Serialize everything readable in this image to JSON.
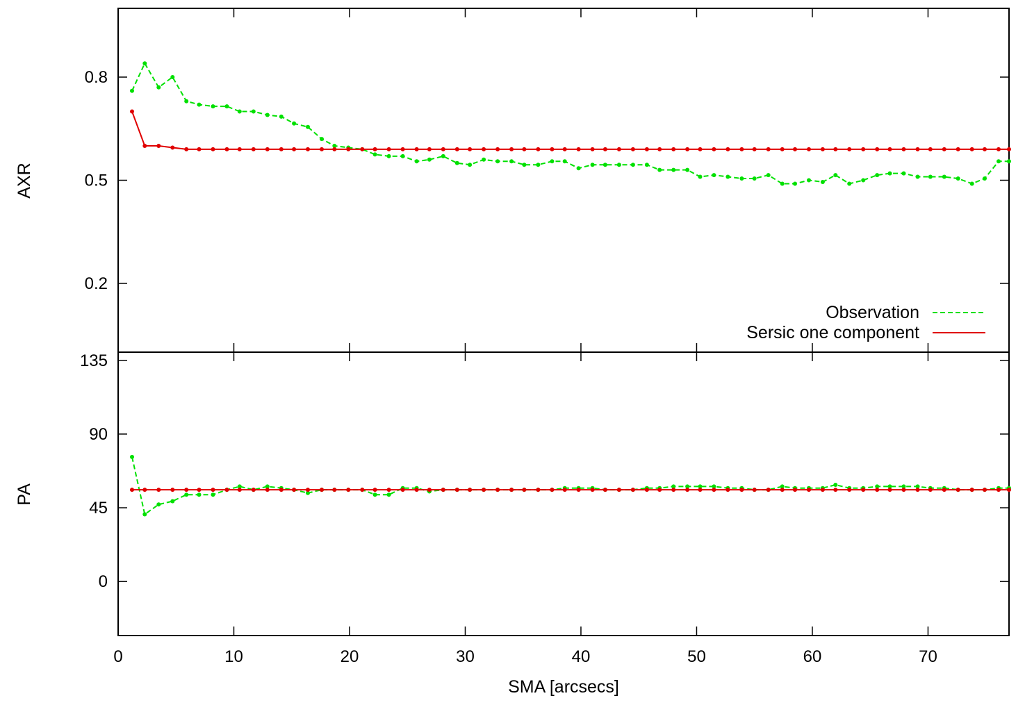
{
  "chart_data": [
    {
      "type": "line",
      "ylabel": "AXR",
      "xlim": [
        0,
        77
      ],
      "ylim": [
        0.0,
        1.0
      ],
      "yticks": [
        0.2,
        0.5,
        0.8
      ],
      "tick_labels": [
        "0.2",
        "0.5",
        "0.8"
      ],
      "legend": {
        "placement": "bottom-right",
        "entries": [
          "Observation",
          "Sersic one component"
        ]
      },
      "series": [
        {
          "name": "Observation",
          "color": "#00e000",
          "style": "dashed",
          "x": [
            1.2,
            2.3,
            3.5,
            4.7,
            5.9,
            7.0,
            8.2,
            9.4,
            10.5,
            11.7,
            12.9,
            14.1,
            15.2,
            16.4,
            17.6,
            18.7,
            19.9,
            21.1,
            22.2,
            23.4,
            24.6,
            25.8,
            26.9,
            28.1,
            29.3,
            30.4,
            31.6,
            32.8,
            34.0,
            35.1,
            36.3,
            37.5,
            38.6,
            39.8,
            41.0,
            42.1,
            43.3,
            44.5,
            45.7,
            46.8,
            48.0,
            49.2,
            50.3,
            51.5,
            52.7,
            53.9,
            55.0,
            56.2,
            57.4,
            58.5,
            59.7,
            60.9,
            62.0,
            63.2,
            64.4,
            65.6,
            66.7,
            67.9,
            69.1,
            70.2,
            71.4,
            72.6,
            73.8,
            74.9,
            76.1,
            77.0
          ],
          "values": [
            0.76,
            0.84,
            0.77,
            0.8,
            0.73,
            0.72,
            0.715,
            0.715,
            0.7,
            0.7,
            0.69,
            0.685,
            0.665,
            0.655,
            0.62,
            0.6,
            0.595,
            0.59,
            0.575,
            0.57,
            0.57,
            0.555,
            0.56,
            0.57,
            0.55,
            0.545,
            0.56,
            0.555,
            0.555,
            0.545,
            0.545,
            0.555,
            0.555,
            0.535,
            0.545,
            0.545,
            0.545,
            0.545,
            0.545,
            0.53,
            0.53,
            0.53,
            0.51,
            0.515,
            0.51,
            0.505,
            0.505,
            0.515,
            0.49,
            0.49,
            0.5,
            0.495,
            0.515,
            0.49,
            0.5,
            0.515,
            0.52,
            0.52,
            0.51,
            0.51,
            0.51,
            0.505,
            0.49,
            0.505,
            0.555,
            0.555
          ]
        },
        {
          "name": "Sersic one component",
          "color": "#e00000",
          "style": "solid",
          "x": [
            1.2,
            2.3,
            3.5,
            4.7,
            5.9,
            7.0,
            8.2,
            9.4,
            10.5,
            11.7,
            12.9,
            14.1,
            15.2,
            16.4,
            17.6,
            18.7,
            19.9,
            21.1,
            22.2,
            23.4,
            24.6,
            25.8,
            26.9,
            28.1,
            29.3,
            30.4,
            31.6,
            32.8,
            34.0,
            35.1,
            36.3,
            37.5,
            38.6,
            39.8,
            41.0,
            42.1,
            43.3,
            44.5,
            45.7,
            46.8,
            48.0,
            49.2,
            50.3,
            51.5,
            52.7,
            53.9,
            55.0,
            56.2,
            57.4,
            58.5,
            59.7,
            60.9,
            62.0,
            63.2,
            64.4,
            65.6,
            66.7,
            67.9,
            69.1,
            70.2,
            71.4,
            72.6,
            73.8,
            74.9,
            76.1,
            77.0
          ],
          "values": [
            0.7,
            0.6,
            0.6,
            0.595,
            0.59,
            0.59,
            0.59,
            0.59,
            0.59,
            0.59,
            0.59,
            0.59,
            0.59,
            0.59,
            0.59,
            0.59,
            0.59,
            0.59,
            0.59,
            0.59,
            0.59,
            0.59,
            0.59,
            0.59,
            0.59,
            0.59,
            0.59,
            0.59,
            0.59,
            0.59,
            0.59,
            0.59,
            0.59,
            0.59,
            0.59,
            0.59,
            0.59,
            0.59,
            0.59,
            0.59,
            0.59,
            0.59,
            0.59,
            0.59,
            0.59,
            0.59,
            0.59,
            0.59,
            0.59,
            0.59,
            0.59,
            0.59,
            0.59,
            0.59,
            0.59,
            0.59,
            0.59,
            0.59,
            0.59,
            0.59,
            0.59,
            0.59,
            0.59,
            0.59,
            0.59,
            0.59
          ]
        }
      ]
    },
    {
      "type": "line",
      "xlabel": "SMA [arcsecs]",
      "ylabel": "PA",
      "xlim": [
        0,
        77
      ],
      "ylim": [
        -33,
        140
      ],
      "xticks": [
        0,
        10,
        20,
        30,
        40,
        50,
        60,
        70
      ],
      "xtick_labels": [
        "0",
        "10",
        "20",
        "30",
        "40",
        "50",
        "60",
        "70"
      ],
      "yticks": [
        0,
        45,
        90,
        135
      ],
      "tick_labels": [
        "0",
        "45",
        "90",
        "135"
      ],
      "series": [
        {
          "name": "Observation",
          "color": "#00e000",
          "style": "dashed",
          "x": [
            1.2,
            2.3,
            3.5,
            4.7,
            5.9,
            7.0,
            8.2,
            9.4,
            10.5,
            11.7,
            12.9,
            14.1,
            15.2,
            16.4,
            17.6,
            18.7,
            19.9,
            21.1,
            22.2,
            23.4,
            24.6,
            25.8,
            26.9,
            28.1,
            29.3,
            30.4,
            31.6,
            32.8,
            34.0,
            35.1,
            36.3,
            37.5,
            38.6,
            39.8,
            41.0,
            42.1,
            43.3,
            44.5,
            45.7,
            46.8,
            48.0,
            49.2,
            50.3,
            51.5,
            52.7,
            53.9,
            55.0,
            56.2,
            57.4,
            58.5,
            59.7,
            60.9,
            62.0,
            63.2,
            64.4,
            65.6,
            66.7,
            67.9,
            69.1,
            70.2,
            71.4,
            72.6,
            73.8,
            74.9,
            76.1,
            77.0
          ],
          "values": [
            76,
            41,
            47,
            49,
            53,
            53,
            53,
            56,
            58,
            56,
            58,
            57,
            56,
            54,
            56,
            56,
            56,
            56,
            53,
            53,
            57,
            57,
            55,
            56,
            56,
            56,
            56,
            56,
            56,
            56,
            56,
            56,
            57,
            57,
            57,
            56,
            56,
            56,
            57,
            57,
            58,
            58,
            58,
            58,
            57,
            57,
            56,
            56,
            58,
            57,
            57,
            57,
            59,
            57,
            57,
            58,
            58,
            58,
            58,
            57,
            57,
            56,
            56,
            56,
            57,
            57
          ]
        },
        {
          "name": "Sersic one component",
          "color": "#e00000",
          "style": "solid",
          "x": [
            1.2,
            2.3,
            3.5,
            4.7,
            5.9,
            7.0,
            8.2,
            9.4,
            10.5,
            11.7,
            12.9,
            14.1,
            15.2,
            16.4,
            17.6,
            18.7,
            19.9,
            21.1,
            22.2,
            23.4,
            24.6,
            25.8,
            26.9,
            28.1,
            29.3,
            30.4,
            31.6,
            32.8,
            34.0,
            35.1,
            36.3,
            37.5,
            38.6,
            39.8,
            41.0,
            42.1,
            43.3,
            44.5,
            45.7,
            46.8,
            48.0,
            49.2,
            50.3,
            51.5,
            52.7,
            53.9,
            55.0,
            56.2,
            57.4,
            58.5,
            59.7,
            60.9,
            62.0,
            63.2,
            64.4,
            65.6,
            66.7,
            67.9,
            69.1,
            70.2,
            71.4,
            72.6,
            73.8,
            74.9,
            76.1,
            77.0
          ],
          "values": [
            56,
            56,
            56,
            56,
            56,
            56,
            56,
            56,
            56,
            56,
            56,
            56,
            56,
            56,
            56,
            56,
            56,
            56,
            56,
            56,
            56,
            56,
            56,
            56,
            56,
            56,
            56,
            56,
            56,
            56,
            56,
            56,
            56,
            56,
            56,
            56,
            56,
            56,
            56,
            56,
            56,
            56,
            56,
            56,
            56,
            56,
            56,
            56,
            56,
            56,
            56,
            56,
            56,
            56,
            56,
            56,
            56,
            56,
            56,
            56,
            56,
            56,
            56,
            56,
            56,
            56
          ]
        }
      ]
    }
  ]
}
